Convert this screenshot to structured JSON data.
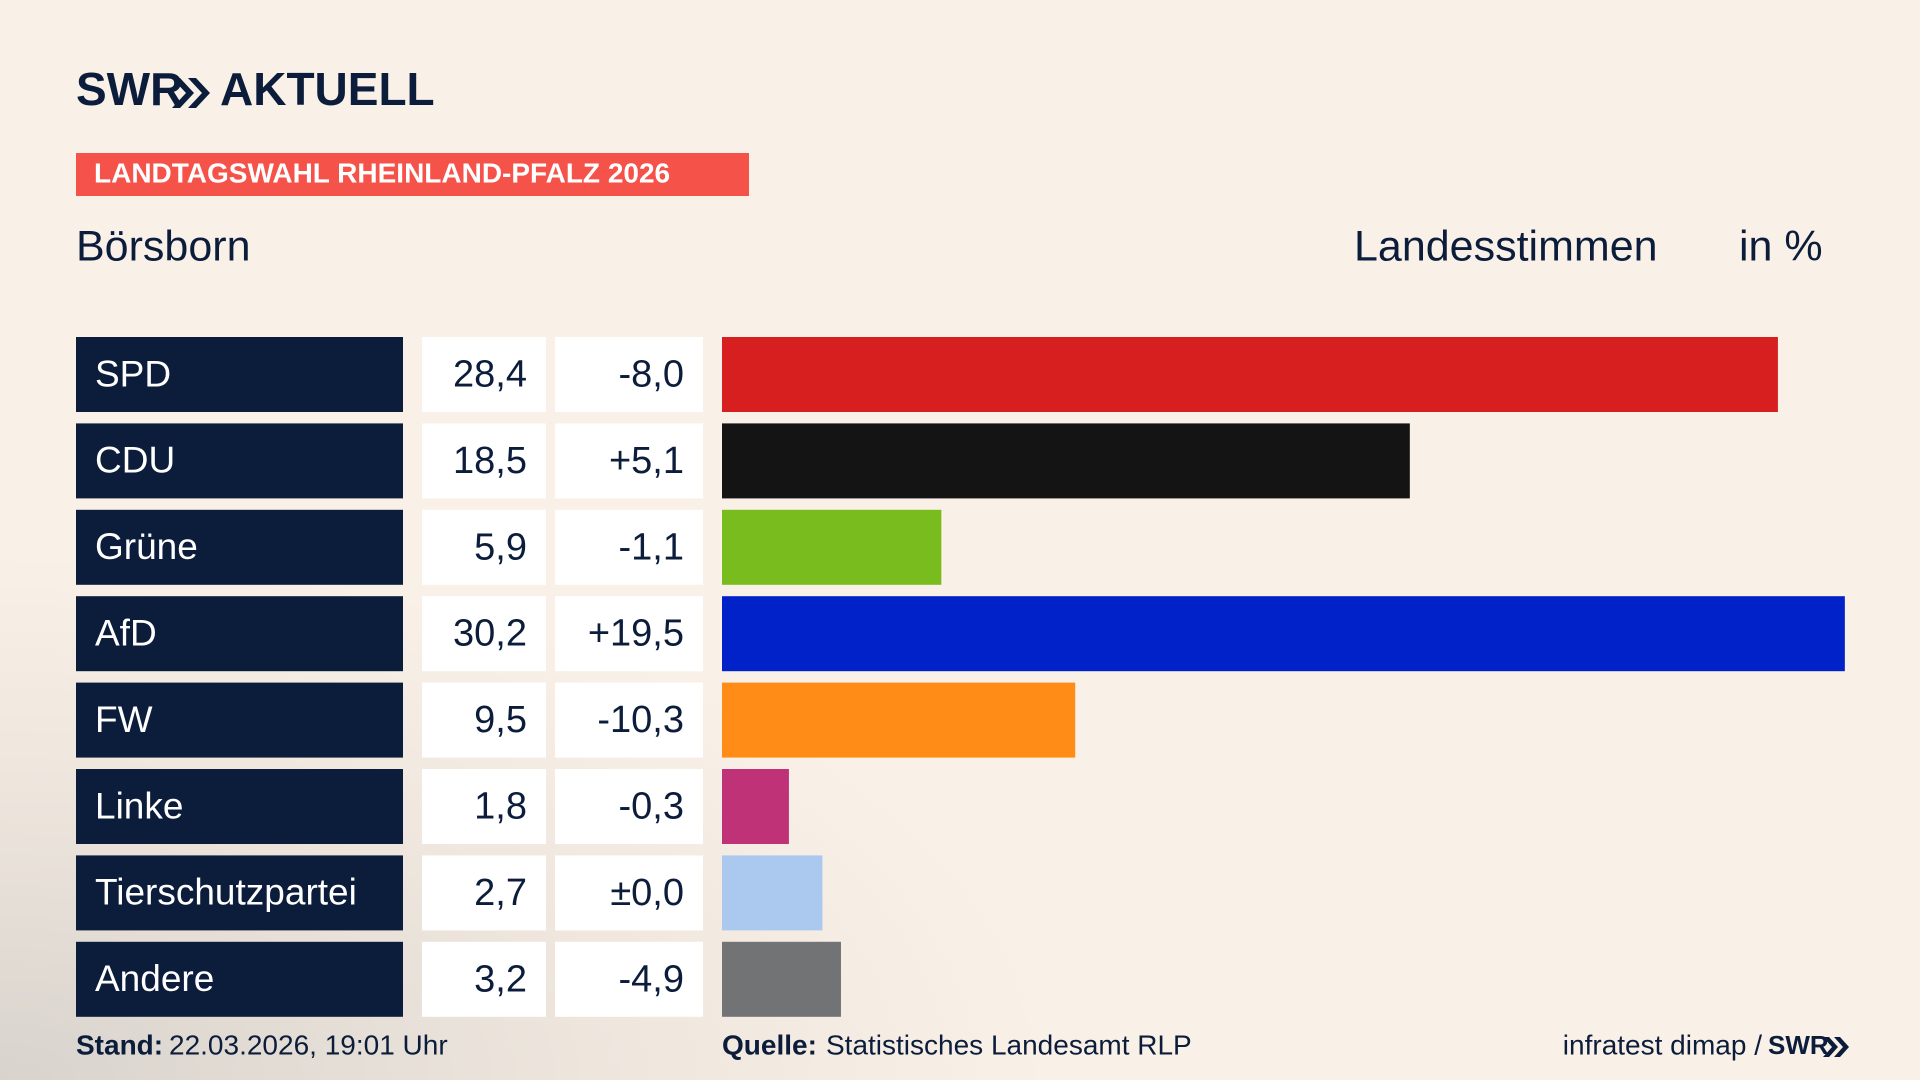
{
  "header": {
    "brand": "SWR",
    "product": "AKTUELL",
    "banner": "LANDTAGSWAHL RHEINLAND-PFALZ 2026",
    "place": "Börsborn",
    "measure": "Landesstimmen",
    "unit": "in %"
  },
  "chart_data": {
    "type": "bar",
    "orientation": "horizontal",
    "categories": [
      "SPD",
      "CDU",
      "Grüne",
      "AfD",
      "FW",
      "Linke",
      "Tierschutzpartei",
      "Andere"
    ],
    "values": [
      28.4,
      18.5,
      5.9,
      30.2,
      9.5,
      1.8,
      2.7,
      3.2
    ],
    "value_labels": [
      "28,4",
      "18,5",
      "5,9",
      "30,2",
      "9,5",
      "1,8",
      "2,7",
      "3,2"
    ],
    "changes": [
      -8.0,
      5.1,
      -1.1,
      19.5,
      -10.3,
      -0.3,
      0.0,
      -4.9
    ],
    "change_labels": [
      "-8,0",
      "+5,1",
      "-1,1",
      "+19,5",
      "-10,3",
      "-0,3",
      "±0,0",
      "-4,9"
    ],
    "colors": [
      "#d71f1f",
      "#141414",
      "#78bc1e",
      "#0022c8",
      "#ff8c17",
      "#bf3277",
      "#abc9ef",
      "#727374"
    ]
  },
  "footer": {
    "stand_label": "Stand:",
    "stand": "22.03.2026, 19:01 Uhr",
    "source_label": "Quelle:",
    "source": "Statistisches Landesamt RLP",
    "credit": "infratest dimap /",
    "brand": "SWR"
  }
}
